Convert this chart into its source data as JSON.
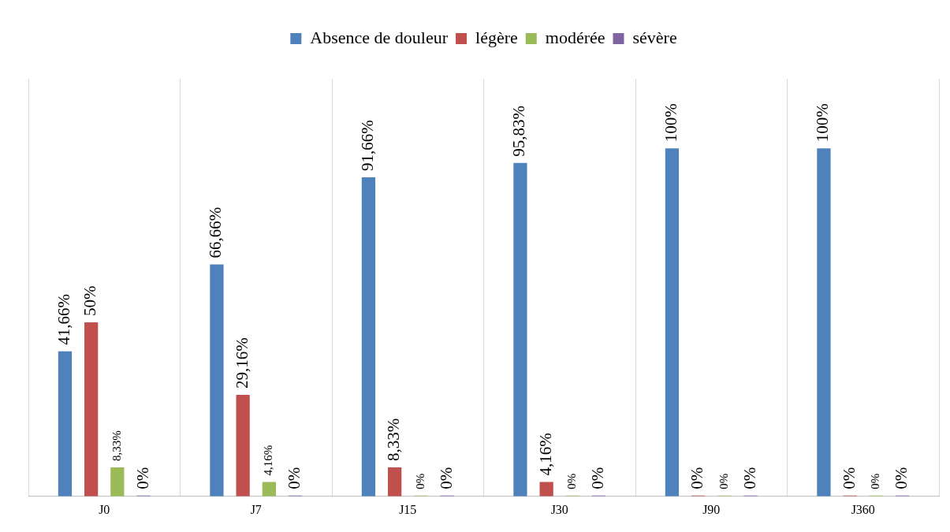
{
  "chart_data": {
    "type": "bar",
    "categories": [
      "J0",
      "J7",
      "J15",
      "J30",
      "J90",
      "J360"
    ],
    "series": [
      {
        "name": "Absence de douleur",
        "color": "#4f81bd",
        "values": [
          41.66,
          66.66,
          91.66,
          95.83,
          100,
          100
        ],
        "value_labels": [
          "41,66%",
          "66,66%",
          "91,66%",
          "95,83%",
          "100%",
          "100%"
        ]
      },
      {
        "name": "légère",
        "color": "#c0504d",
        "values": [
          50,
          29.16,
          8.33,
          4.16,
          0,
          0
        ],
        "value_labels": [
          "50%",
          "29,16%",
          "8,33%",
          "4,16%",
          "0%",
          "0%"
        ]
      },
      {
        "name": "modérée",
        "color": "#9bbb59",
        "values": [
          8.33,
          4.16,
          0,
          0,
          0,
          0
        ],
        "value_labels": [
          "8,33%",
          "4,16%",
          "0%",
          "0%",
          "0%",
          "0%"
        ]
      },
      {
        "name": "sévère",
        "color": "#8064a2",
        "values": [
          0,
          0,
          0,
          0,
          0,
          0
        ],
        "value_labels": [
          "0%",
          "0%",
          "0%",
          "0%",
          "0%",
          "0%"
        ]
      }
    ],
    "ylim": [
      0,
      120
    ],
    "grid": "x",
    "legend": "top",
    "tick_labels": "x"
  }
}
